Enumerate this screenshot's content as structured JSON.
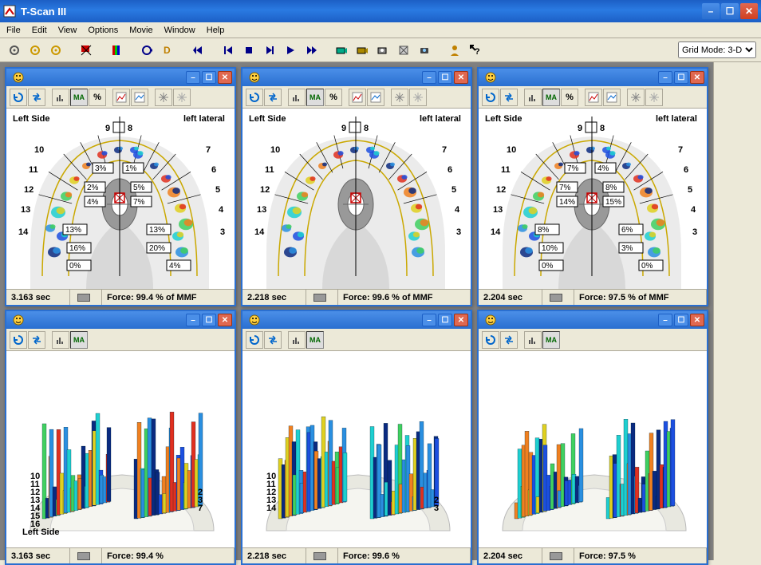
{
  "app": {
    "title": "T-Scan III",
    "menus": [
      "File",
      "Edit",
      "View",
      "Options",
      "Movie",
      "Window",
      "Help"
    ],
    "toolbar": {
      "buttons": [
        "gear1-icon",
        "gear2-icon",
        "gear3-icon",
        "sep",
        "flag-x-icon",
        "sep",
        "palette-icon",
        "sep",
        "loop-icon",
        "d-icon",
        "sep",
        "rewind-icon",
        "sep",
        "skip-back-icon",
        "stop-icon",
        "step-icon",
        "play-icon",
        "ff-icon",
        "sep",
        "camera1-icon",
        "camera2-icon",
        "camera3-icon",
        "camera4-icon",
        "camera5-icon",
        "sep",
        "person-icon",
        "help-arrow-icon"
      ],
      "dropdown_label": "Grid Mode: 3-D"
    }
  },
  "colors": {
    "title_gradient_top": "#1c5fc5",
    "title_gradient_mid": "#2a7ae2",
    "win_bg": "#ece9d8",
    "mdi_bg": "#808080",
    "child_border": "#2a6fd0",
    "close_btn": "#e06850",
    "arch_fill": "#d8d8d8",
    "arch_outline": "#caa800",
    "contact_colors": [
      "#0a2a80",
      "#1c4fe0",
      "#2a8fe0",
      "#1ecfd0",
      "#40d060",
      "#e0d020",
      "#f08020",
      "#e03020"
    ]
  },
  "panels": [
    {
      "id": "r1c1",
      "type": "arch2d",
      "left_label": "Left Side",
      "right_label": "left lateral",
      "teeth_top": [
        "9",
        "8"
      ],
      "teeth_left": [
        "10",
        "11",
        "12",
        "13",
        "14"
      ],
      "teeth_right": [
        "7",
        "6",
        "5",
        "4",
        "3"
      ],
      "center_pct": [
        "3%",
        "1%",
        "2%",
        "5%",
        "4%",
        "7%"
      ],
      "outer_pct_left": [
        "13%",
        "16%",
        "0%"
      ],
      "outer_pct_right": [
        "13%",
        "20%",
        "4%"
      ],
      "status_time": "3.163 sec",
      "status_force": "Force: 99.4 % of MMF"
    },
    {
      "id": "r1c2",
      "type": "arch2d",
      "left_label": "Left Side",
      "right_label": "left lateral",
      "teeth_top": [
        "9",
        "8"
      ],
      "teeth_left": [
        "10",
        "11",
        "12",
        "13",
        "14"
      ],
      "teeth_right": [
        "7",
        "6",
        "5",
        "4",
        "3"
      ],
      "center_pct": [],
      "outer_pct_left": [],
      "outer_pct_right": [],
      "status_time": "2.218 sec",
      "status_force": "Force: 99.6 % of MMF"
    },
    {
      "id": "r1c3",
      "type": "arch2d",
      "left_label": "Left Side",
      "right_label": "left lateral",
      "teeth_top": [
        "9",
        "8"
      ],
      "teeth_left": [
        "10",
        "11",
        "12",
        "13",
        "14"
      ],
      "teeth_right": [
        "7",
        "6",
        "5",
        "4",
        "3"
      ],
      "center_pct": [
        "7%",
        "4%",
        "7%",
        "8%",
        "14%",
        "15%"
      ],
      "outer_pct_left": [
        "8%",
        "10%",
        "0%"
      ],
      "outer_pct_right": [
        "6%",
        "3%",
        "0%"
      ],
      "status_time": "2.204 sec",
      "status_force": "Force: 97.5 % of MMF"
    },
    {
      "id": "r2c1",
      "type": "arch3d",
      "left_label": "Left Side",
      "left_nums": [
        "10",
        "11",
        "12",
        "13",
        "14",
        "15",
        "16"
      ],
      "right_nums": [
        "7",
        "3",
        "2"
      ],
      "status_time": "3.163 sec",
      "status_force": "Force: 99.4 %"
    },
    {
      "id": "r2c2",
      "type": "arch3d",
      "left_label": "",
      "left_nums": [
        "10",
        "11",
        "12",
        "13",
        "14"
      ],
      "right_nums": [
        "3",
        "2"
      ],
      "status_time": "2.218 sec",
      "status_force": "Force: 99.6 %"
    },
    {
      "id": "r2c3",
      "type": "arch3d",
      "left_label": "",
      "left_nums": [],
      "right_nums": [],
      "status_time": "2.204 sec",
      "status_force": "Force: 97.5 %"
    }
  ],
  "child_toolbar_r1": [
    "refresh",
    "swap",
    "sep",
    "bars",
    "MA",
    "%",
    "sep",
    "chart1",
    "chart2",
    "sep",
    "burst1",
    "burst2"
  ],
  "child_toolbar_r2": [
    "refresh",
    "swap",
    "sep",
    "bars",
    "MA"
  ]
}
